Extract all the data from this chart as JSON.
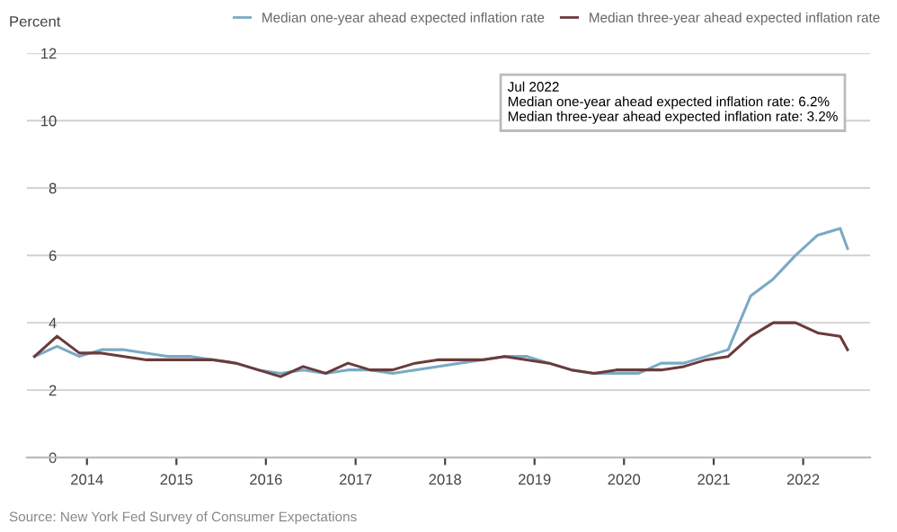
{
  "chart_data": {
    "type": "line",
    "ylabel": "Percent",
    "x": [
      "2013-06",
      "2013-09",
      "2013-12",
      "2014-03",
      "2014-06",
      "2014-09",
      "2014-12",
      "2015-03",
      "2015-06",
      "2015-09",
      "2015-12",
      "2016-03",
      "2016-06",
      "2016-09",
      "2016-12",
      "2017-03",
      "2017-06",
      "2017-09",
      "2017-12",
      "2018-03",
      "2018-06",
      "2018-09",
      "2018-12",
      "2019-03",
      "2019-06",
      "2019-09",
      "2019-12",
      "2020-03",
      "2020-06",
      "2020-09",
      "2020-12",
      "2021-03",
      "2021-06",
      "2021-09",
      "2021-12",
      "2022-03",
      "2022-06",
      "2022-07"
    ],
    "series": [
      {
        "name": "Median one-year ahead expected inflation rate",
        "color": "#7aaac4",
        "values": [
          3.0,
          3.3,
          3.0,
          3.2,
          3.2,
          3.1,
          3.0,
          3.0,
          2.9,
          2.8,
          2.6,
          2.5,
          2.6,
          2.5,
          2.6,
          2.6,
          2.5,
          2.6,
          2.7,
          2.8,
          2.9,
          3.0,
          3.0,
          2.8,
          2.6,
          2.5,
          2.5,
          2.5,
          2.8,
          2.8,
          3.0,
          3.2,
          4.8,
          5.3,
          6.0,
          6.6,
          6.8,
          6.2
        ]
      },
      {
        "name": "Median three-year ahead expected inflation rate",
        "color": "#6b3b3b",
        "values": [
          3.0,
          3.6,
          3.1,
          3.1,
          3.0,
          2.9,
          2.9,
          2.9,
          2.9,
          2.8,
          2.6,
          2.4,
          2.7,
          2.5,
          2.8,
          2.6,
          2.6,
          2.8,
          2.9,
          2.9,
          2.9,
          3.0,
          2.9,
          2.8,
          2.6,
          2.5,
          2.6,
          2.6,
          2.6,
          2.7,
          2.9,
          3.0,
          3.6,
          4.0,
          4.0,
          3.7,
          3.6,
          3.2
        ]
      }
    ],
    "xlim": [
      "2013-05",
      "2022-10"
    ],
    "xticks": [
      {
        "value": "2014-01",
        "label": "2014"
      },
      {
        "value": "2015-01",
        "label": "2015"
      },
      {
        "value": "2016-01",
        "label": "2016"
      },
      {
        "value": "2017-01",
        "label": "2017"
      },
      {
        "value": "2018-01",
        "label": "2018"
      },
      {
        "value": "2019-01",
        "label": "2019"
      },
      {
        "value": "2020-01",
        "label": "2020"
      },
      {
        "value": "2021-01",
        "label": "2021"
      },
      {
        "value": "2022-01",
        "label": "2022"
      }
    ],
    "ylim": [
      0,
      12
    ],
    "yticks": [
      0,
      2,
      4,
      6,
      8,
      10,
      12
    ],
    "grid": "y",
    "legend": "top right",
    "marker": "none",
    "line_style": "solid",
    "annotations": [
      "Jul 2022",
      "Median one-year ahead expected inflation rate: 6.2%",
      "Median three-year ahead expected inflation rate: 3.2%",
      "Source: New York Fed Survey of Consumer Expectations"
    ]
  }
}
